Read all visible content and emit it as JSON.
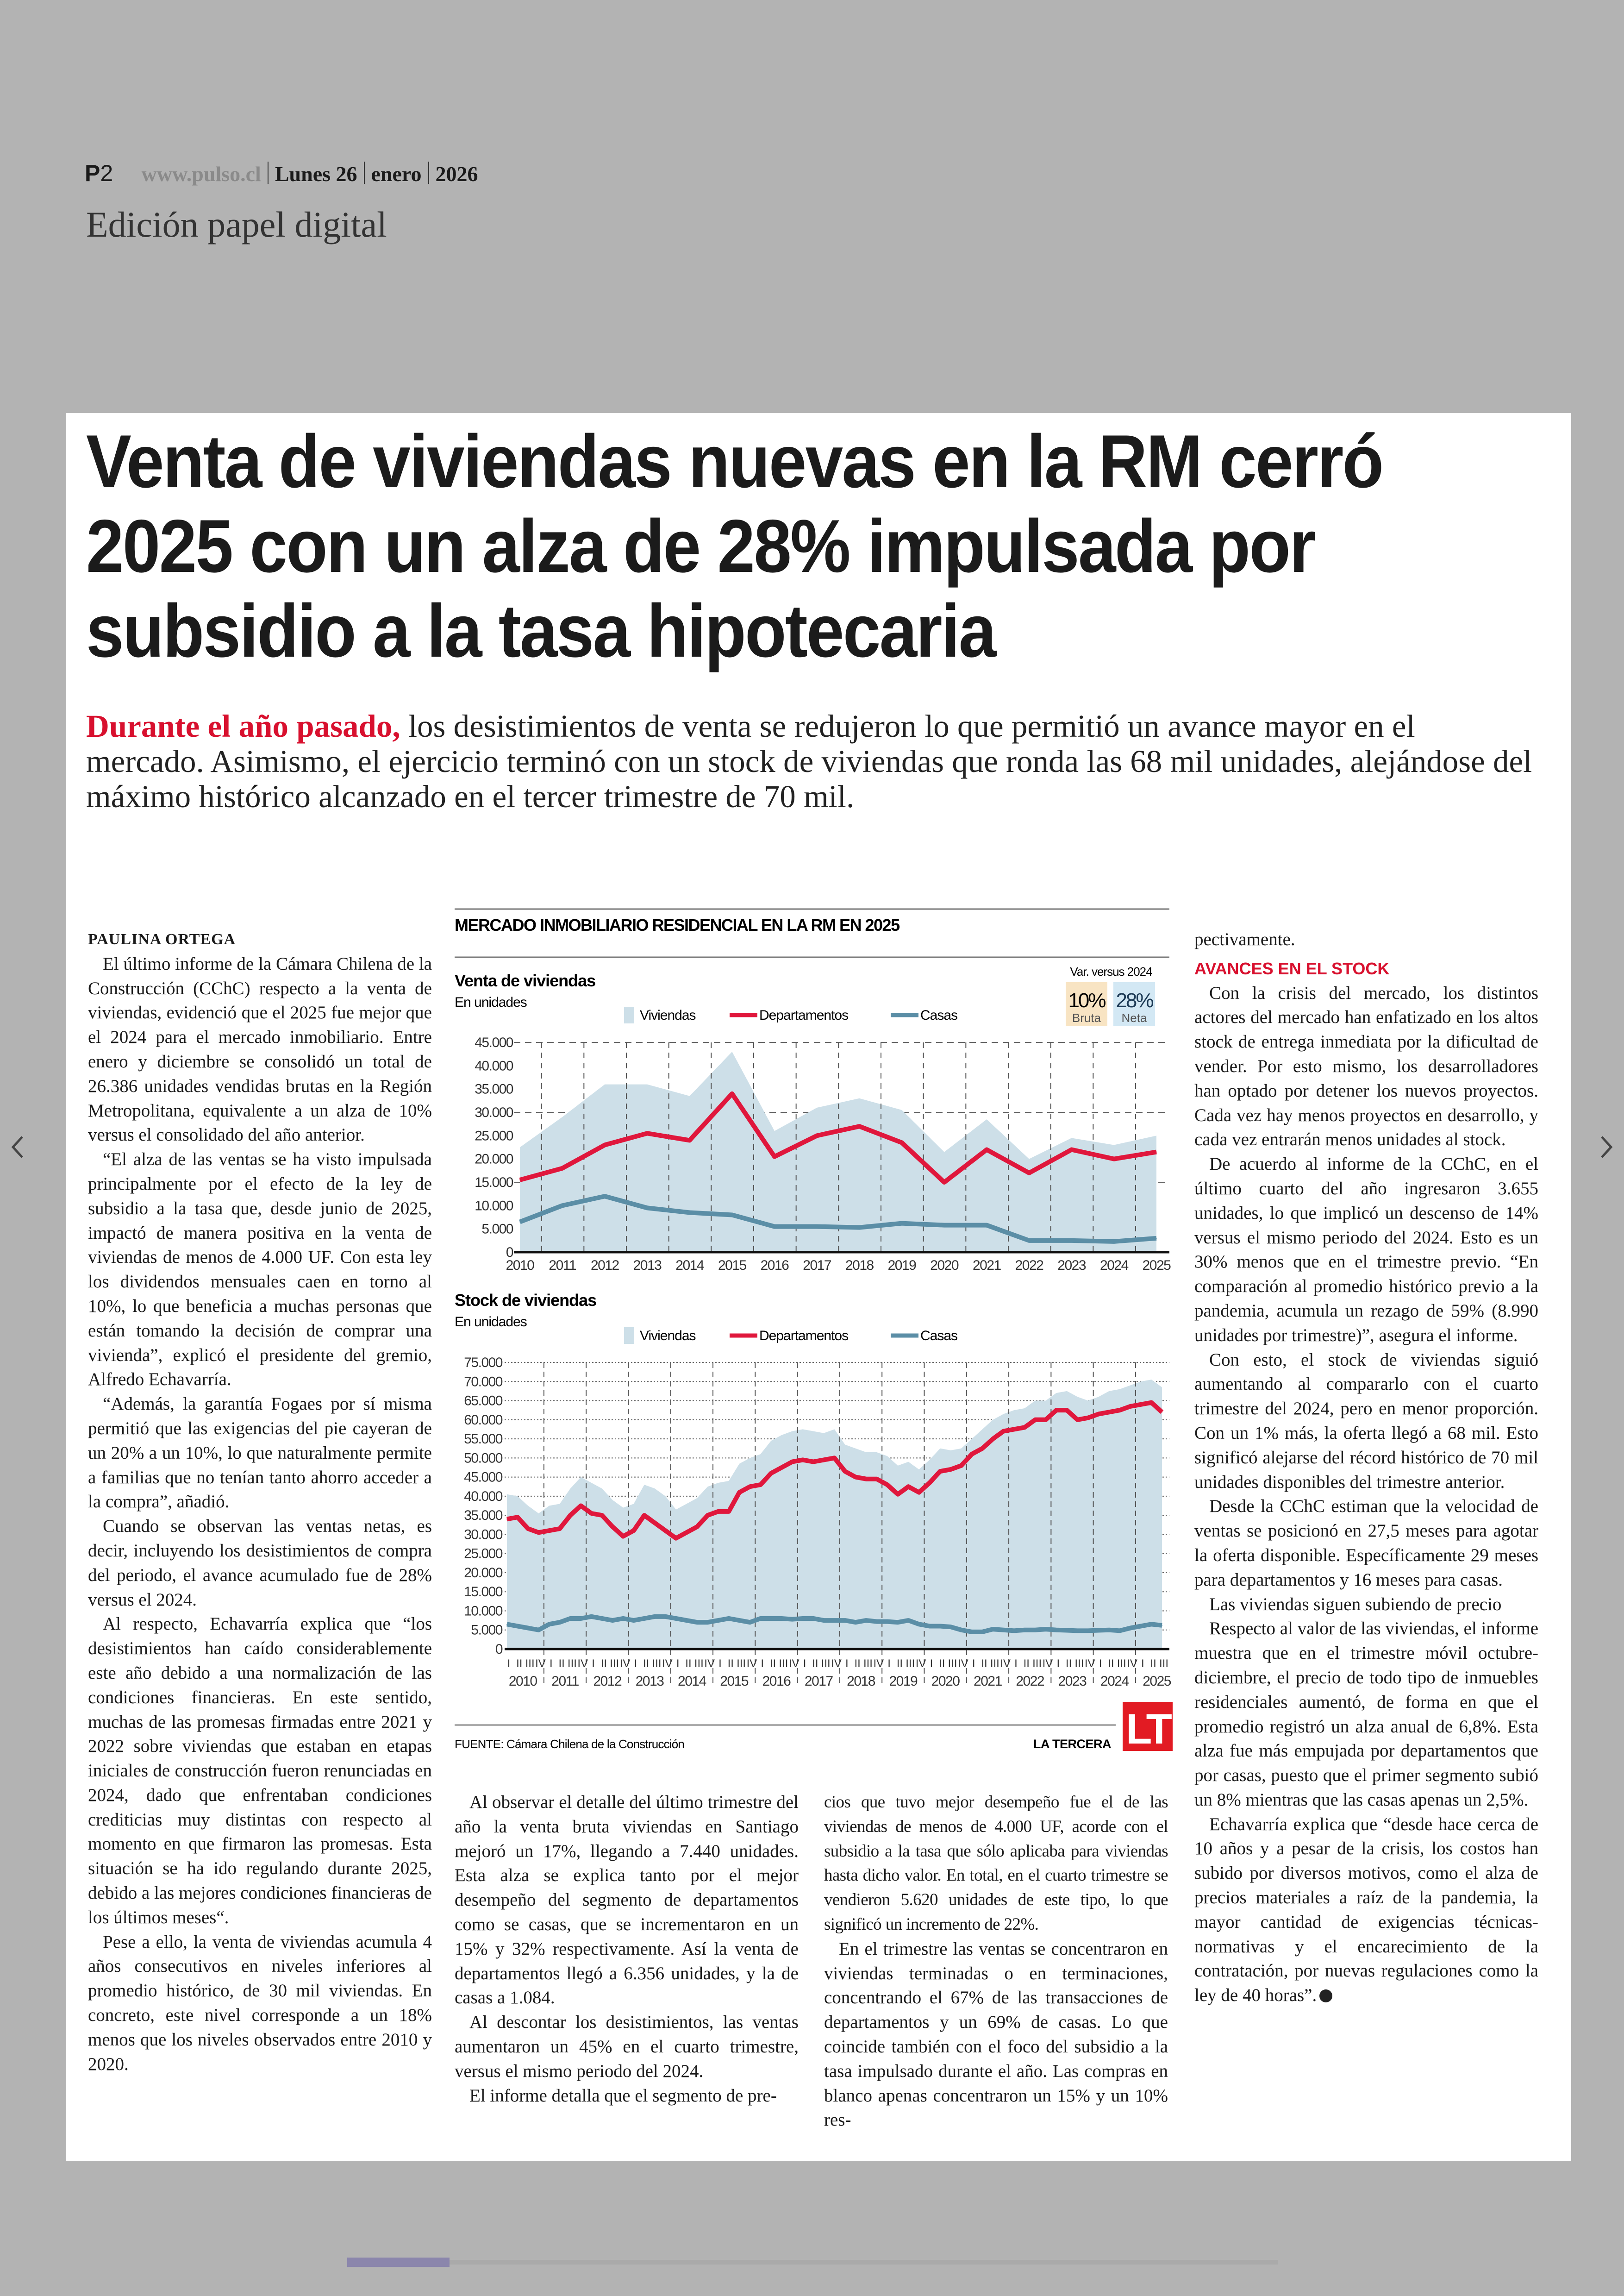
{
  "masthead": {
    "page_letter": "P",
    "page_number": "2",
    "site": "www.pulso.cl",
    "weekday": "Lunes 26",
    "month": "enero",
    "year": "2026",
    "edition": "Edición papel digital"
  },
  "article": {
    "headline_lines": [
      "Venta de viviendas nuevas en la RM cerró",
      "2025 con un alza de 28% impulsada por",
      "subsidio a la tasa hipotecaria"
    ],
    "lead_highlight": "Durante el año pasado,",
    "lead_rest": " los desistimientos de venta se redujeron lo que permitió un avance mayor en el mercado. Asimismo, el ejercicio terminó con un stock de viviendas que ronda las 68 mil unidades, alejándose del máximo histórico alcanzado en el tercer trimestre de 70 mil.",
    "byline": "PAULINA ORTEGA",
    "col1": [
      "El último informe de la Cámara Chilena de la Construcción (CChC) respecto a la venta de viviendas, evidenció que el 2025 fue mejor que el 2024 para el mercado inmobiliario. Entre enero y diciembre se consolidó un total de 26.386 unidades vendidas brutas en la Región Metropolitana, equivalente a un alza de 10% versus el consolidado del año anterior.",
      "“El alza de las ventas se ha visto impulsada principalmente por el efecto de la ley de subsidio a la tasa que, desde junio de 2025, impactó de manera positiva en la venta de viviendas de menos de 4.000 UF. Con esta ley los dividendos mensuales caen en torno al 10%, lo que beneficia a muchas personas que están tomando la decisión de comprar una vivienda”, explicó el presidente del gremio, Alfredo Echavarría.",
      "“Además, la garantía Fogaes por sí misma permitió que las exigencias del pie cayeran de un 20% a un 10%, lo que naturalmente permite a familias que no tenían tanto ahorro acceder a la compra”, añadió.",
      "Cuando se observan las ventas netas, es decir, incluyendo los desistimientos de compra del periodo, el avance acumulado fue de 28% versus el 2024.",
      "Al respecto, Echavarría explica que “los desistimientos han caído considerablemente este año debido a una normalización de las condiciones financieras. En este sentido, muchas de las promesas firmadas entre 2021 y 2022 sobre viviendas que estaban en etapas iniciales de construcción fueron renunciadas en 2024, dado que enfrentaban condiciones crediticias muy distintas con respecto al momento en que firmaron las promesas. Esta situación se ha ido regulando durante 2025, debido a las mejores condiciones financieras de los últimos meses“.",
      "Pese a ello, la venta de viviendas acumula 4 años consecutivos en niveles inferiores al promedio histórico, de 30 mil viviendas. En concreto, este nivel corresponde a un 18% menos que los niveles observados entre 2010 y 2020."
    ],
    "col2": [
      "Al observar el detalle del último trimestre del año la venta bruta viviendas en Santiago mejoró un 17%, llegando a 7.440 unidades. Esta alza se explica tanto por el mejor desempeño del segmento de departamentos como se casas, que se incrementaron en un 15% y 32% respectivamente. Así la venta de departamentos llegó a 6.356 unidades, y la de casas a 1.084.",
      "Al descontar los desistimientos, las ventas aumentaron un 45% en el cuarto trimestre, versus el mismo periodo del 2024.",
      "El informe detalla que el segmento de pre-"
    ],
    "col3": [
      "cios que tuvo mejor desempeño fue el de las viviendas de menos de 4.000 UF, acorde con el subsidio a la tasa que sólo aplicaba para viviendas hasta dicho valor. En total, en el cuarto trimestre se vendieron 5.620 unidades de este tipo, lo que significó un incremento de 22%.",
      "En el trimestre las ventas se concentraron en viviendas terminadas o en terminaciones, concentrando el 67% de las transacciones de departamentos y un 69% de casas. Lo que coincide también con el foco del subsidio a la tasa impulsado durante el año. Las compras en blanco apenas concentraron un 15% y un 10% res-"
    ],
    "col4_start": "pectivamente.",
    "col4_subhead": "AVANCES EN EL STOCK",
    "col4": [
      "Con la crisis del mercado, los distintos actores del mercado han enfatizado en los altos stock de entrega inmediata por la dificultad de vender. Por esto mismo, los desarrolladores han optado por detener los nuevos proyectos. Cada vez hay menos proyectos en desarrollo, y cada vez entrarán menos unidades al stock.",
      "De acuerdo al informe de la CChC, en el último cuarto del año ingresaron 3.655 unidades, lo que implicó un descenso de 14% versus el mismo periodo del 2024. Esto es un 30% menos que en el trimestre previo. “En comparación al promedio histórico previo a la pandemia, acumula un rezago de 59% (8.990 unidades por trimestre)”, asegura el informe.",
      "Con esto, el stock de viviendas siguió aumentando al compararlo con el cuarto trimestre del 2024, pero en menor proporción. Con un 1% más, la oferta llegó a 68 mil. Esto significó alejarse del récord histórico de 70 mil unidades disponibles del trimestre anterior.",
      "Desde la CChC estiman que la velocidad de ventas se posicionó en 27,5 meses para agotar la oferta disponible. Específicamente 29 meses para departamentos y 16 meses para casas.",
      "Las viviendas siguen subiendo de precio",
      "Respecto al valor de las viviendas, el informe muestra que en el trimestre móvil octubre-diciembre, el precio de todo tipo de inmuebles residenciales aumentó, de forma en que el promedio registró un alza anual de 6,8%. Esta alza fue más empujada por departamentos que por casas, puesto que el primer segmento subió un 8% mientras que las casas apenas un 2,5%.",
      "Echavarría explica que “desde hace cerca de 10 años y a pesar de la crisis, los costos han subido por diversos motivos, como el alza de precios materiales a raíz de la pandemia, la mayor cantidad de exigencias técnicas- normativas y el encarecimiento de la contratación, por nuevas regulaciones como la ley de 40 horas”."
    ],
    "end_icon": "end-of-article-mark-icon"
  },
  "infographic": {
    "title": "MERCADO INMOBILIARIO RESIDENCIAL EN LA RM EN 2025",
    "source": "FUENTE: Cámara Chilena de la Construcción",
    "brand": "LA TERCERA",
    "logo": "LT",
    "var_label": "Var. versus 2024",
    "var_bruta_value": "10%",
    "var_bruta_label": "Bruta",
    "var_neta_value": "28%",
    "var_neta_label": "Neta",
    "colors": {
      "viviendas": "#cddfe8",
      "departamentos": "#e0173c",
      "casas": "#5b8ea6",
      "bruta_bg": "#f8e4c3",
      "neta_bg": "#d3e8f4",
      "logo": "#e21b23"
    }
  },
  "chart_data": [
    {
      "type": "area+line",
      "title": "Venta de viviendas",
      "subtitle": "En unidades",
      "legend": [
        "Viviendas",
        "Departamentos",
        "Casas"
      ],
      "x": [
        "2010",
        "2011",
        "2012",
        "2013",
        "2014",
        "2015",
        "2016",
        "2017",
        "2018",
        "2019",
        "2020",
        "2021",
        "2022",
        "2023",
        "2024",
        "2025"
      ],
      "yticks": [
        "45.000",
        "40.000",
        "35.000",
        "30.000",
        "25.000",
        "20.000",
        "15.000",
        "10.000",
        "5.000",
        "0"
      ],
      "ylim": [
        0,
        45000
      ],
      "series": [
        {
          "name": "Viviendas",
          "kind": "area",
          "values": [
            22500,
            29000,
            36000,
            36000,
            33500,
            43000,
            26000,
            31000,
            33000,
            30500,
            21500,
            28500,
            20000,
            24500,
            23000,
            25000
          ]
        },
        {
          "name": "Departamentos",
          "kind": "line",
          "values": [
            15500,
            18000,
            23000,
            25500,
            24000,
            34000,
            20500,
            25000,
            27000,
            23500,
            15000,
            22000,
            17000,
            22000,
            20000,
            21500
          ]
        },
        {
          "name": "Casas",
          "kind": "line",
          "values": [
            6500,
            10000,
            12000,
            9500,
            8500,
            8000,
            5500,
            5500,
            5300,
            6200,
            5800,
            5800,
            2500,
            2500,
            2300,
            3000
          ]
        }
      ]
    },
    {
      "type": "area+line",
      "title": "Stock de viviendas",
      "subtitle": "En unidades",
      "legend": [
        "Viviendas",
        "Departamentos",
        "Casas"
      ],
      "years": [
        "2010",
        "2011",
        "2012",
        "2013",
        "2014",
        "2015",
        "2016",
        "2017",
        "2018",
        "2019",
        "2020",
        "2021",
        "2022",
        "2023",
        "2024",
        "2025"
      ],
      "quarters": [
        "I",
        "II",
        "III",
        "IV"
      ],
      "last_year_quarters": 3,
      "yticks": [
        "75.000",
        "70.000",
        "65.000",
        "60.000",
        "55.000",
        "50.000",
        "45.000",
        "40.000",
        "35.000",
        "30.000",
        "25.000",
        "20.000",
        "15.000",
        "10.000",
        "5.000",
        "0"
      ],
      "ylim": [
        0,
        75000
      ],
      "series": [
        {
          "name": "Viviendas",
          "kind": "area",
          "values": [
            40500,
            40000,
            37500,
            35500,
            37500,
            38000,
            42000,
            45000,
            43500,
            42000,
            39000,
            37000,
            38000,
            43000,
            42000,
            40000,
            36500,
            38000,
            39500,
            42500,
            43500,
            44000,
            48500,
            50000,
            51000,
            54500,
            56000,
            57000,
            57500,
            57000,
            56500,
            57500,
            53500,
            52500,
            51500,
            51500,
            50500,
            48000,
            49000,
            47000,
            49500,
            52500,
            52000,
            52500,
            55000,
            57500,
            60000,
            61500,
            62500,
            63000,
            65000,
            65000,
            67000,
            67500,
            66000,
            65000,
            66000,
            67500,
            68000,
            69000,
            70000,
            70500,
            68500
          ]
        },
        {
          "name": "Departamentos",
          "kind": "line",
          "values": [
            34000,
            34500,
            31500,
            30500,
            31000,
            31500,
            35000,
            37500,
            35500,
            35000,
            32000,
            29500,
            31000,
            35000,
            33000,
            31000,
            29000,
            30500,
            32000,
            35000,
            36000,
            36000,
            41000,
            42500,
            43000,
            46000,
            47500,
            49000,
            49500,
            49000,
            49500,
            50000,
            46500,
            45000,
            44500,
            44500,
            43000,
            40500,
            42500,
            41000,
            43500,
            46500,
            47000,
            48000,
            51000,
            52500,
            55000,
            57000,
            57500,
            58000,
            60000,
            60000,
            62500,
            62500,
            60000,
            60500,
            61500,
            62000,
            62500,
            63500,
            64000,
            64500,
            62000
          ]
        },
        {
          "name": "Casas",
          "kind": "line",
          "values": [
            6500,
            6000,
            5500,
            5000,
            6500,
            7000,
            8000,
            8000,
            8500,
            8000,
            7500,
            8000,
            7500,
            8000,
            8500,
            8500,
            8000,
            7500,
            7000,
            7000,
            7500,
            8000,
            7500,
            7000,
            8000,
            8000,
            8000,
            7800,
            8000,
            8000,
            7500,
            7500,
            7500,
            7000,
            7500,
            7200,
            7200,
            7000,
            7500,
            6500,
            6000,
            6000,
            5800,
            5000,
            4500,
            4500,
            5200,
            5000,
            4800,
            5000,
            5000,
            5200,
            5000,
            4900,
            4800,
            4800,
            4900,
            5000,
            4800,
            5500,
            6000,
            6500,
            6200
          ]
        }
      ]
    }
  ],
  "viewer": {
    "prev_icon": "chevron-left-icon",
    "next_icon": "chevron-right-icon",
    "progress_percent": 11
  }
}
